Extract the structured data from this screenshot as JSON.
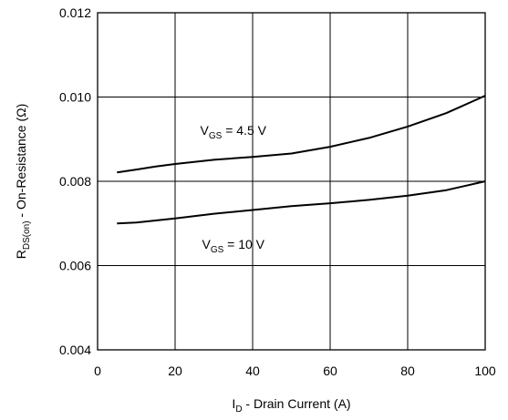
{
  "chart_data": {
    "type": "line",
    "xlabel": "ID - Drain Current (A)",
    "xlabel_parts": {
      "main": "I",
      "sub": "D",
      "rest": " - Drain Current (A)"
    },
    "ylabel": "RDS(on) - On-Resistance (Ω)",
    "ylabel_parts": {
      "main": "R",
      "sub": "DS(on)",
      "rest": " - On-Resistance (Ω)"
    },
    "xlim": [
      0,
      100
    ],
    "ylim": [
      0.004,
      0.012
    ],
    "x_ticks": [
      0,
      20,
      40,
      60,
      80,
      100
    ],
    "x_tick_labels": [
      "0",
      "20",
      "40",
      "60",
      "80",
      "100"
    ],
    "y_ticks": [
      0.004,
      0.006,
      0.008,
      0.01,
      0.012
    ],
    "y_tick_labels": [
      "0.004",
      "0.006",
      "0.008",
      "0.010",
      "0.012"
    ],
    "grid": true,
    "series": [
      {
        "label_parts": {
          "main": "V",
          "sub": "GS",
          "rest": " = 4.5 V"
        },
        "label_pos": [
          35,
          0.0091
        ],
        "x": [
          5,
          10,
          15,
          20,
          30,
          40,
          50,
          60,
          70,
          80,
          90,
          100
        ],
        "y": [
          0.00821,
          0.00828,
          0.00835,
          0.00841,
          0.00851,
          0.00858,
          0.00866,
          0.00882,
          0.00903,
          0.0093,
          0.00962,
          0.01003
        ]
      },
      {
        "label_parts": {
          "main": "V",
          "sub": "GS",
          "rest": " = 10 V"
        },
        "label_pos": [
          35,
          0.0064
        ],
        "x": [
          5,
          10,
          15,
          20,
          30,
          40,
          50,
          60,
          70,
          80,
          90,
          100
        ],
        "y": [
          0.007,
          0.00702,
          0.00707,
          0.00712,
          0.00723,
          0.00732,
          0.00741,
          0.00748,
          0.00756,
          0.00766,
          0.00779,
          0.008
        ]
      }
    ]
  }
}
